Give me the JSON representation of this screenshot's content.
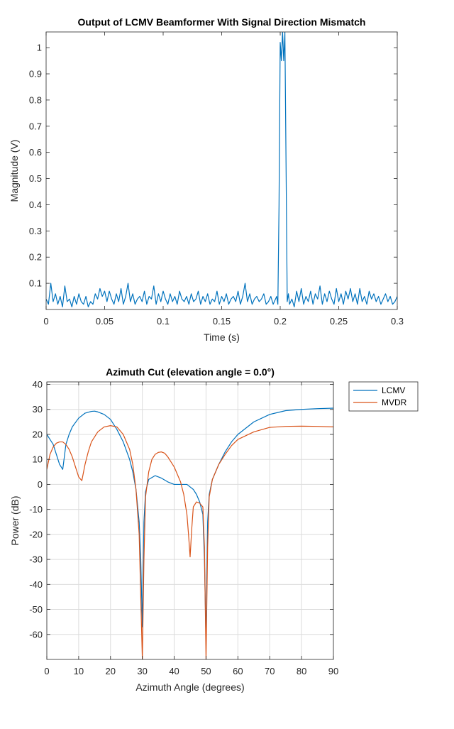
{
  "chart_data": [
    {
      "type": "line",
      "title": "Output of LCMV Beamformer With Signal Direction Mismatch",
      "xlabel": "Time (s)",
      "ylabel": "Magnitude (V)",
      "xlim": [
        0,
        0.3
      ],
      "ylim": [
        0,
        1.06
      ],
      "grid": false,
      "xticks": [
        0,
        0.05,
        0.1,
        0.15,
        0.2,
        0.25,
        0.3
      ],
      "xtick_labels": [
        "0",
        "0.05",
        "0.1",
        "0.15",
        "0.2",
        "0.25",
        "0.3"
      ],
      "yticks": [
        0.1,
        0.2,
        0.3,
        0.4,
        0.5,
        0.6,
        0.7,
        0.8,
        0.9,
        1
      ],
      "ytick_labels": [
        "0.1",
        "0.2",
        "0.3",
        "0.4",
        "0.5",
        "0.6",
        "0.7",
        "0.8",
        "0.9",
        "1"
      ],
      "series": [
        {
          "color": "#0072BD",
          "x": [
            0,
            0.002,
            0.004,
            0.006,
            0.008,
            0.01,
            0.012,
            0.014,
            0.016,
            0.018,
            0.02,
            0.022,
            0.024,
            0.026,
            0.028,
            0.03,
            0.032,
            0.034,
            0.036,
            0.038,
            0.04,
            0.042,
            0.044,
            0.046,
            0.048,
            0.05,
            0.052,
            0.054,
            0.056,
            0.058,
            0.06,
            0.062,
            0.064,
            0.066,
            0.068,
            0.07,
            0.072,
            0.074,
            0.076,
            0.078,
            0.08,
            0.082,
            0.084,
            0.086,
            0.088,
            0.09,
            0.092,
            0.094,
            0.096,
            0.098,
            0.1,
            0.102,
            0.104,
            0.106,
            0.108,
            0.11,
            0.112,
            0.114,
            0.116,
            0.118,
            0.12,
            0.122,
            0.124,
            0.126,
            0.128,
            0.13,
            0.132,
            0.134,
            0.136,
            0.138,
            0.14,
            0.142,
            0.144,
            0.146,
            0.148,
            0.15,
            0.152,
            0.154,
            0.156,
            0.158,
            0.16,
            0.162,
            0.164,
            0.166,
            0.168,
            0.17,
            0.172,
            0.174,
            0.176,
            0.178,
            0.18,
            0.182,
            0.184,
            0.186,
            0.188,
            0.19,
            0.192,
            0.194,
            0.196,
            0.197,
            0.198,
            0.199,
            0.2,
            0.201,
            0.202,
            0.203,
            0.204,
            0.205,
            0.206,
            0.207,
            0.208,
            0.21,
            0.212,
            0.214,
            0.216,
            0.218,
            0.22,
            0.222,
            0.224,
            0.226,
            0.228,
            0.23,
            0.232,
            0.234,
            0.236,
            0.238,
            0.24,
            0.242,
            0.244,
            0.246,
            0.248,
            0.25,
            0.252,
            0.254,
            0.256,
            0.258,
            0.26,
            0.262,
            0.264,
            0.266,
            0.268,
            0.27,
            0.272,
            0.274,
            0.276,
            0.278,
            0.28,
            0.282,
            0.284,
            0.286,
            0.288,
            0.29,
            0.292,
            0.294,
            0.296,
            0.298,
            0.3
          ],
          "y": [
            0.04,
            0.02,
            0.1,
            0.03,
            0.06,
            0.02,
            0.05,
            0.01,
            0.09,
            0.03,
            0.04,
            0.01,
            0.05,
            0.02,
            0.06,
            0.03,
            0.02,
            0.05,
            0.01,
            0.03,
            0.02,
            0.06,
            0.04,
            0.08,
            0.05,
            0.07,
            0.03,
            0.07,
            0.04,
            0.02,
            0.06,
            0.03,
            0.08,
            0.02,
            0.05,
            0.1,
            0.03,
            0.06,
            0.02,
            0.04,
            0.05,
            0.03,
            0.07,
            0.02,
            0.05,
            0.04,
            0.09,
            0.02,
            0.06,
            0.03,
            0.07,
            0.04,
            0.02,
            0.06,
            0.03,
            0.05,
            0.02,
            0.07,
            0.04,
            0.03,
            0.05,
            0.02,
            0.06,
            0.03,
            0.04,
            0.07,
            0.02,
            0.05,
            0.03,
            0.06,
            0.02,
            0.04,
            0.03,
            0.07,
            0.02,
            0.05,
            0.03,
            0.06,
            0.02,
            0.04,
            0.05,
            0.03,
            0.07,
            0.02,
            0.05,
            0.1,
            0.03,
            0.06,
            0.02,
            0.04,
            0.05,
            0.03,
            0.04,
            0.06,
            0.02,
            0.03,
            0.05,
            0.02,
            0.04,
            0.05,
            0.02,
            0.4,
            1.02,
            0.95,
            1.06,
            0.95,
            1.06,
            0.55,
            0.03,
            0.06,
            0.02,
            0.04,
            0.01,
            0.07,
            0.03,
            0.08,
            0.02,
            0.05,
            0.03,
            0.07,
            0.02,
            0.06,
            0.04,
            0.09,
            0.02,
            0.06,
            0.03,
            0.07,
            0.04,
            0.02,
            0.08,
            0.03,
            0.06,
            0.02,
            0.07,
            0.04,
            0.08,
            0.03,
            0.06,
            0.02,
            0.08,
            0.03,
            0.05,
            0.02,
            0.07,
            0.04,
            0.06,
            0.03,
            0.05,
            0.02,
            0.04,
            0.06,
            0.03,
            0.05,
            0.02,
            0.03,
            0.05
          ]
        }
      ]
    },
    {
      "type": "line",
      "title": "Azimuth Cut (elevation angle = 0.0°)",
      "xlabel": "Azimuth Angle (degrees)",
      "ylabel": "Power (dB)",
      "xlim": [
        0,
        90
      ],
      "ylim": [
        -70,
        41
      ],
      "grid": true,
      "legend": "outside-top-right",
      "xticks": [
        0,
        10,
        20,
        30,
        40,
        50,
        60,
        70,
        80,
        90
      ],
      "xtick_labels": [
        "0",
        "10",
        "20",
        "30",
        "40",
        "50",
        "60",
        "70",
        "80",
        "90"
      ],
      "yticks": [
        -60,
        -50,
        -40,
        -30,
        -20,
        -10,
        0,
        10,
        20,
        30,
        40
      ],
      "ytick_labels": [
        "-60",
        "-50",
        "-40",
        "-30",
        "-20",
        "-10",
        "0",
        "10",
        "20",
        "30",
        "40"
      ],
      "series": [
        {
          "name": "LCMV",
          "color": "#0072BD",
          "x": [
            0,
            1,
            2,
            3,
            4,
            5,
            6,
            7,
            8,
            10,
            12,
            14,
            15,
            16,
            18,
            20,
            22,
            24,
            26,
            27,
            28,
            29,
            29.5,
            30,
            30.5,
            31,
            32,
            34,
            36,
            38,
            40,
            42,
            44,
            45,
            46,
            47,
            48,
            49,
            49.5,
            50,
            50.5,
            51,
            52,
            54,
            56,
            58,
            60,
            65,
            70,
            75,
            80,
            85,
            90
          ],
          "y": [
            20,
            18,
            16,
            12,
            8,
            6,
            16,
            20,
            23,
            26.5,
            28.5,
            29.2,
            29.3,
            29,
            28,
            26,
            22,
            17,
            10,
            5,
            -2,
            -15,
            -30,
            -57,
            -15,
            -3,
            2,
            3.5,
            2.5,
            1,
            0,
            0,
            0,
            -1,
            -2,
            -4,
            -7,
            -12,
            -30,
            -63,
            -15,
            -4,
            2,
            8,
            13,
            17,
            20,
            25,
            28,
            29.5,
            30,
            30.3,
            30.5
          ]
        },
        {
          "name": "MVDR",
          "color": "#D95319",
          "x": [
            0,
            1,
            2,
            3,
            4,
            5,
            6,
            7,
            8,
            9,
            10,
            11,
            12,
            13,
            14,
            16,
            18,
            20,
            22,
            24,
            26,
            27,
            28,
            29,
            29.5,
            30,
            30.5,
            31,
            32,
            33,
            34,
            35,
            36,
            37,
            38,
            40,
            42,
            43,
            44,
            44.5,
            45,
            45.5,
            46,
            47,
            48,
            49,
            49.5,
            50,
            50.5,
            51,
            52,
            54,
            56,
            58,
            60,
            65,
            70,
            75,
            80,
            85,
            90
          ],
          "y": [
            6,
            12,
            15,
            16.5,
            17,
            17,
            16,
            14,
            11,
            7,
            3,
            1.5,
            8,
            13,
            17,
            21,
            23,
            23.5,
            23,
            20,
            14,
            8,
            -2,
            -20,
            -45,
            -70,
            -30,
            -5,
            5,
            10,
            12,
            12.8,
            13,
            12.5,
            11,
            7,
            1,
            -4,
            -12,
            -20,
            -29,
            -18,
            -9,
            -7,
            -7.5,
            -9,
            -25,
            -70,
            -25,
            -5,
            2,
            8,
            12,
            15.5,
            18,
            21,
            22.8,
            23.2,
            23.3,
            23.2,
            23
          ]
        }
      ]
    }
  ]
}
